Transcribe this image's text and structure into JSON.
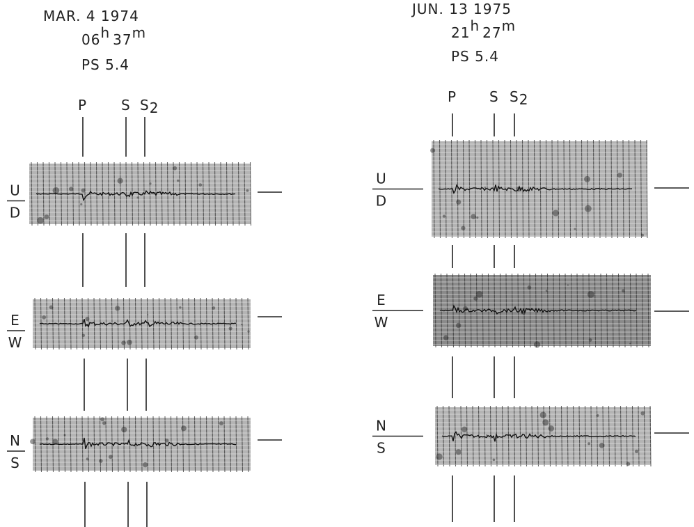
{
  "panels": [
    {
      "date": "MAR. 4 1974",
      "time": {
        "hours": "06",
        "hour_unit": "h",
        "minutes": "37",
        "minute_unit": "m"
      },
      "magnitude": "PS 5.4",
      "phases": [
        "P",
        "S",
        "S"
      ],
      "phase_subscript": "2",
      "components": [
        [
          "U",
          "D"
        ],
        [
          "E",
          "W"
        ],
        [
          "N",
          "S"
        ]
      ]
    },
    {
      "date": "JUN. 13 1975",
      "time": {
        "hours": "21",
        "hour_unit": "h",
        "minutes": "27",
        "minute_unit": "m"
      },
      "magnitude": "PS 5.4",
      "phases": [
        "P",
        "S",
        "S"
      ],
      "phase_subscript": "2",
      "components": [
        [
          "U",
          "D"
        ],
        [
          "E",
          "W"
        ],
        [
          "N",
          "S"
        ]
      ]
    }
  ]
}
